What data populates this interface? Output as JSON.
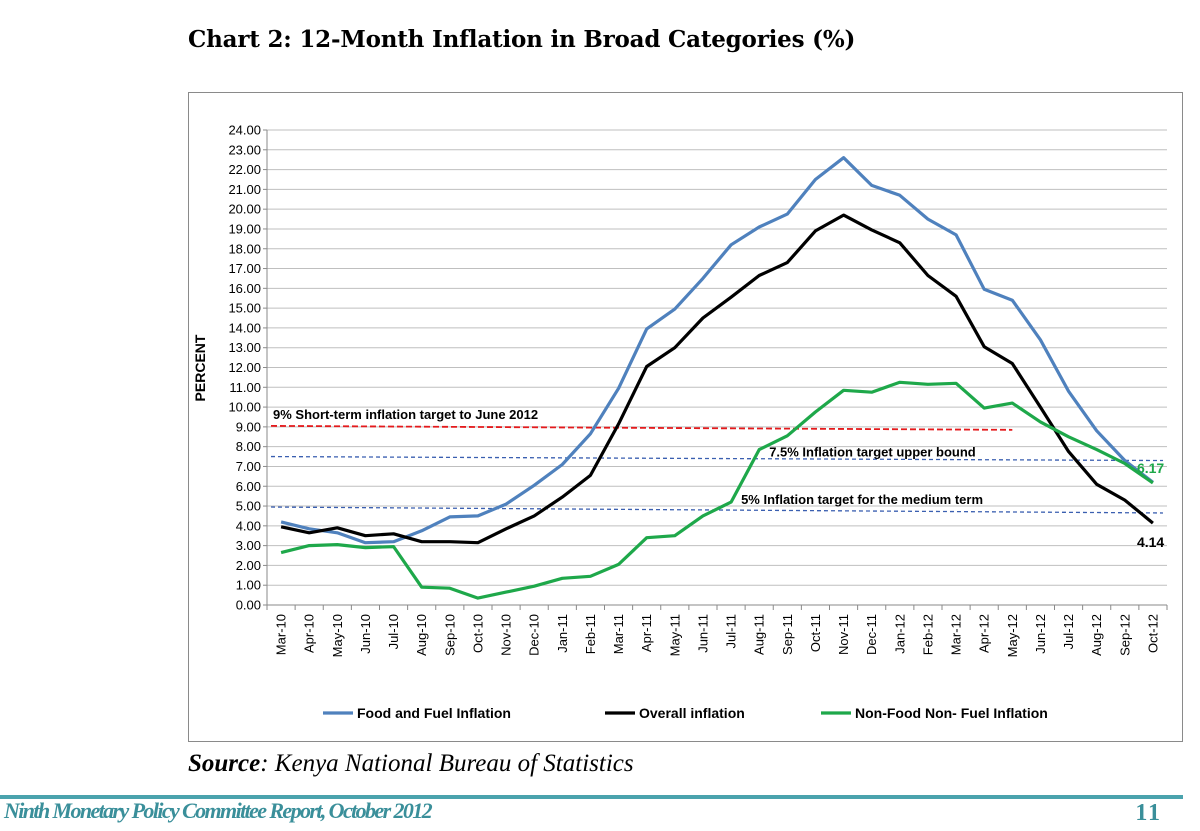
{
  "title": "Chart 2: 12-Month Inflation in Broad Categories (%)",
  "source": {
    "label": "Source",
    "text": ": Kenya  National Bureau of Statistics"
  },
  "footer": {
    "report": "Ninth Monetary Policy Committee Report, October 2012",
    "page": "11"
  },
  "colors": {
    "food_fuel": "#4f81bd",
    "overall": "#000000",
    "non_food": "#1ea84a",
    "short_target": "#e41a1c",
    "targets": "#3a5fb0",
    "grid": "#bfbfbf"
  },
  "chart_data": {
    "type": "line",
    "ylabel": "PERCENT",
    "xlabel": "",
    "ylim": [
      0,
      24
    ],
    "ytick_step": 1,
    "ytick_labels": [
      "0.00",
      "1.00",
      "2.00",
      "3.00",
      "4.00",
      "5.00",
      "6.00",
      "7.00",
      "8.00",
      "9.00",
      "10.00",
      "11.00",
      "12.00",
      "13.00",
      "14.00",
      "15.00",
      "16.00",
      "17.00",
      "18.00",
      "19.00",
      "20.00",
      "21.00",
      "22.00",
      "23.00",
      "24.00"
    ],
    "grid": true,
    "legend_position": "bottom",
    "categories": [
      "Mar-10",
      "Apr-10",
      "May-10",
      "Jun-10",
      "Jul-10",
      "Aug-10",
      "Sep-10",
      "Oct-10",
      "Nov-10",
      "Dec-10",
      "Jan-11",
      "Feb-11",
      "Mar-11",
      "Apr-11",
      "May-11",
      "Jun-11",
      "Jul-11",
      "Aug-11",
      "Sep-11",
      "Oct-11",
      "Nov-11",
      "Dec-11",
      "Jan-12",
      "Feb-12",
      "Mar-12",
      "Apr-12",
      "May-12",
      "Jun-12",
      "Jul-12",
      "Aug-12",
      "Sep-12",
      "Oct-12"
    ],
    "series": [
      {
        "name": "Food and Fuel Inflation",
        "color": "#4f81bd",
        "values": [
          4.2,
          3.85,
          3.65,
          3.15,
          3.2,
          3.75,
          4.45,
          4.5,
          5.1,
          6.05,
          7.1,
          8.65,
          10.95,
          13.95,
          14.95,
          16.5,
          18.2,
          19.1,
          19.75,
          21.5,
          22.6,
          21.2,
          20.7,
          19.5,
          18.7,
          15.95,
          15.4,
          13.4,
          10.8,
          8.8,
          7.3,
          6.2
        ]
      },
      {
        "name": "Overall inflation",
        "color": "#000000",
        "values": [
          3.95,
          3.65,
          3.9,
          3.5,
          3.6,
          3.2,
          3.2,
          3.15,
          3.85,
          4.5,
          5.45,
          6.55,
          9.15,
          12.05,
          13.0,
          14.5,
          15.55,
          16.65,
          17.3,
          18.9,
          19.7,
          18.95,
          18.3,
          16.65,
          15.6,
          13.05,
          12.2,
          10.0,
          7.75,
          6.1,
          5.3,
          4.14
        ]
      },
      {
        "name": "Non-Food Non- Fuel Inflation",
        "color": "#1ea84a",
        "values": [
          2.65,
          3.0,
          3.05,
          2.9,
          2.95,
          0.9,
          0.85,
          0.35,
          0.65,
          0.95,
          1.35,
          1.45,
          2.05,
          3.4,
          3.5,
          4.5,
          5.2,
          7.85,
          8.55,
          9.75,
          10.85,
          10.75,
          11.25,
          11.15,
          11.2,
          9.95,
          10.2,
          9.25,
          8.5,
          7.85,
          7.15,
          6.17
        ]
      }
    ],
    "reference_lines": [
      {
        "label": "9%  Short-term inflation target to June 2012",
        "from": "Mar-10",
        "to": "May-12",
        "y_start": 9.05,
        "y_end": 8.85,
        "color": "#e41a1c"
      },
      {
        "label": "7.5% Inflation target upper bound",
        "from": "Mar-10",
        "to": "Oct-12",
        "y_start": 7.5,
        "y_end": 7.3,
        "color": "#3a5fb0"
      },
      {
        "label": "5% Inflation target for the medium term",
        "from": "Mar-10",
        "to": "Oct-12",
        "y_start": 4.95,
        "y_end": 4.65,
        "color": "#3a5fb0"
      }
    ],
    "annotations": [
      {
        "text": "6.17",
        "series": "Non-Food Non- Fuel Inflation",
        "at": "Oct-12",
        "color": "#1ea84a"
      },
      {
        "text": "4.14",
        "series": "Overall inflation",
        "at": "Oct-12",
        "color": "#000000"
      }
    ]
  }
}
